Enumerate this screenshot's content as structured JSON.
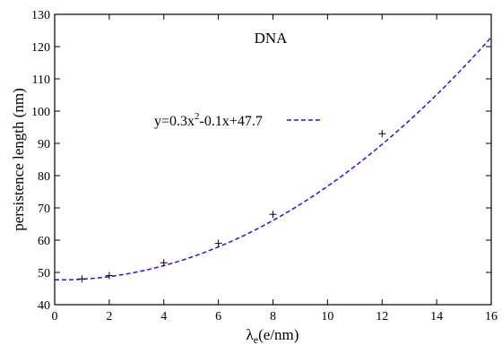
{
  "chart_data": {
    "type": "scatter",
    "title": "DNA",
    "xlabel": "λe(e/nm)",
    "xlabel_base": "λ",
    "xlabel_sub": "e",
    "xlabel_rest": "(e/nm)",
    "ylabel": "persistence length (nm)",
    "xlim": [
      0,
      16
    ],
    "ylim": [
      40,
      130
    ],
    "xticks": [
      0,
      2,
      4,
      6,
      8,
      10,
      12,
      14,
      16
    ],
    "yticks": [
      40,
      50,
      60,
      70,
      80,
      90,
      100,
      110,
      120,
      130
    ],
    "grid": false,
    "legend_placement": "upper-left",
    "series": [
      {
        "kind": "points",
        "marker": "+",
        "color": "#000000",
        "x": [
          1,
          2,
          4,
          6,
          8,
          12
        ],
        "y": [
          48,
          49,
          53,
          59,
          68,
          93
        ]
      },
      {
        "kind": "fit",
        "name": "y=0.3x2-0.1x+47.7",
        "legend_main": "y=0.3x",
        "legend_sup": "2",
        "legend_tail": "-0.1x+47.7",
        "line_style": "dashed",
        "color": "#1a1adf",
        "coefficients": {
          "a": 0.3,
          "b": -0.1,
          "c": 47.7
        }
      }
    ]
  }
}
